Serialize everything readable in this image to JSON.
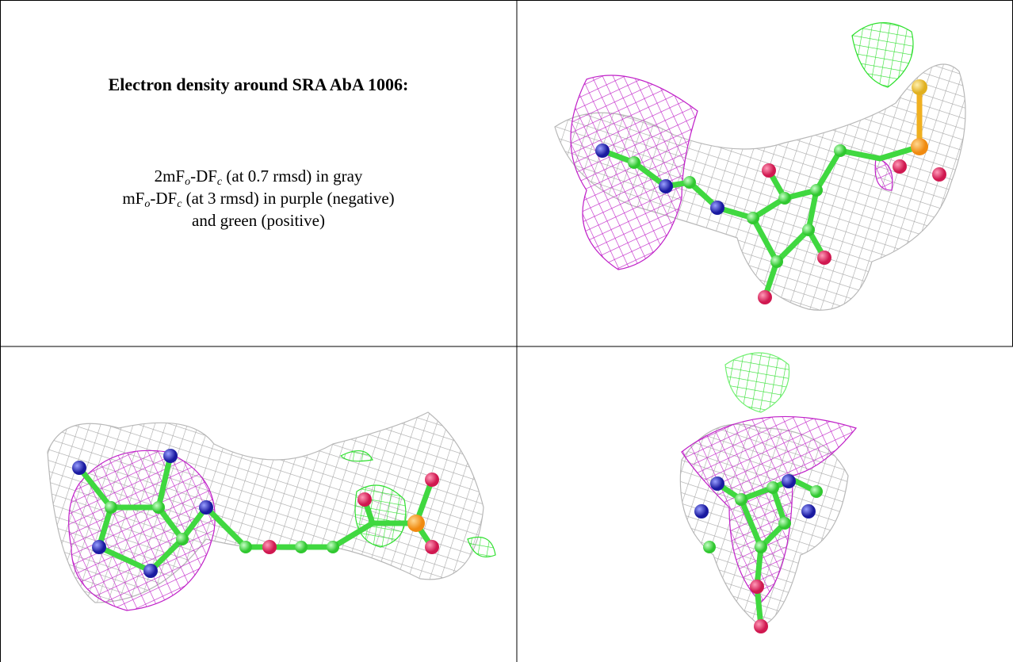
{
  "header": {
    "title": "Electron density around SRA AbA 1006:"
  },
  "legend": {
    "lines": [
      [
        {
          "text": "2mF"
        },
        {
          "text": "o",
          "sub": true
        },
        {
          "text": "-DF"
        },
        {
          "text": "c",
          "sub": true
        },
        {
          "text": " (at 0.7 rmsd) in gray"
        }
      ],
      [
        {
          "text": "mF"
        },
        {
          "text": "o",
          "sub": true
        },
        {
          "text": "-DF"
        },
        {
          "text": "c",
          "sub": true
        },
        {
          "text": " (at 3 rmsd) in purple (negative)"
        }
      ],
      [
        {
          "text": "and green (positive)"
        }
      ]
    ]
  }
}
